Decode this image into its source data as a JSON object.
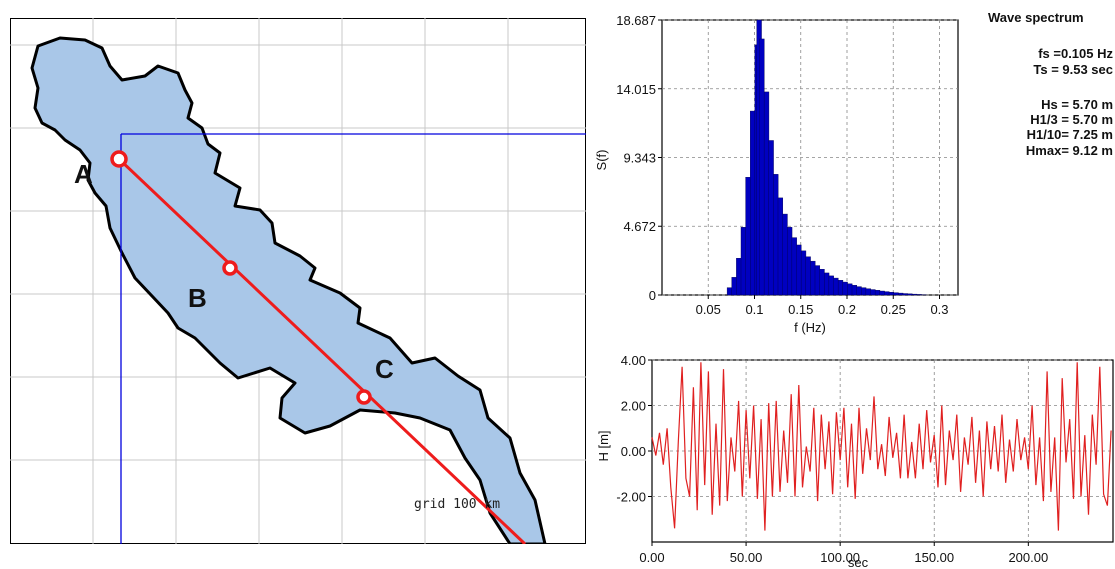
{
  "map": {
    "points": [
      {
        "label": "A"
      },
      {
        "label": "B"
      },
      {
        "label": "C"
      }
    ],
    "grid_label": "grid 100 km",
    "colors": {
      "water": "#a9c7e8",
      "coast": "#000000",
      "line": "#ee1c1c",
      "cross": "#0000dd",
      "grid": "#c8c8c8"
    }
  },
  "spectrum": {
    "title": "Wave spectrum",
    "info_lines": [
      "fs =0.105 Hz",
      "Ts = 9.53 sec",
      "Hs = 5.70 m",
      "H1/3 = 5.70 m",
      "H1/10= 7.25 m",
      "Hmax= 9.12 m"
    ]
  },
  "chart_data": [
    {
      "type": "bar",
      "title": "Wave spectrum",
      "xlabel": "f (Hz)",
      "ylabel": "S(f)",
      "xlim": [
        0,
        0.32
      ],
      "ylim": [
        0,
        18.687
      ],
      "xticks": [
        0.05,
        0.1,
        0.15,
        0.2,
        0.25,
        0.3
      ],
      "xtick_labels": [
        "0.05",
        "0.1",
        "0.15",
        "0.2",
        "0.25",
        "0.3"
      ],
      "yticks": [
        0,
        4.672,
        9.343,
        14.015,
        18.687
      ],
      "ytick_labels": [
        "0",
        "4.672",
        "9.343",
        "14.015",
        "18.687"
      ],
      "grid": true,
      "color": "#0000c0",
      "x": [
        0.068,
        0.073,
        0.078,
        0.083,
        0.088,
        0.093,
        0.098,
        0.103,
        0.105,
        0.108,
        0.113,
        0.118,
        0.123,
        0.128,
        0.133,
        0.138,
        0.143,
        0.148,
        0.153,
        0.158,
        0.163,
        0.168,
        0.173,
        0.178,
        0.183,
        0.188,
        0.193,
        0.198,
        0.203,
        0.208,
        0.213,
        0.218,
        0.223,
        0.228,
        0.233,
        0.238,
        0.243,
        0.248,
        0.253,
        0.258,
        0.263,
        0.268,
        0.273,
        0.278,
        0.283
      ],
      "values": [
        0.0,
        0.5,
        1.2,
        2.5,
        4.6,
        8.0,
        12.5,
        17.0,
        18.687,
        17.4,
        13.8,
        10.5,
        8.2,
        6.6,
        5.5,
        4.6,
        3.9,
        3.4,
        3.0,
        2.6,
        2.3,
        2.0,
        1.75,
        1.5,
        1.3,
        1.15,
        1.0,
        0.88,
        0.76,
        0.66,
        0.57,
        0.5,
        0.43,
        0.37,
        0.32,
        0.27,
        0.23,
        0.19,
        0.16,
        0.13,
        0.1,
        0.08,
        0.06,
        0.04,
        0.02
      ]
    },
    {
      "type": "line",
      "xlabel": "sec",
      "ylabel": "H [m]",
      "xlim": [
        0,
        245
      ],
      "ylim": [
        -4,
        4
      ],
      "xticks": [
        0,
        50,
        100,
        150,
        200
      ],
      "xtick_labels": [
        "0.00",
        "50.00",
        "100.00",
        "150.00",
        "200.00"
      ],
      "yticks": [
        -2,
        0,
        2,
        4
      ],
      "ytick_labels": [
        "-2.00",
        "0.00",
        "2.00",
        "4.00"
      ],
      "grid": true,
      "color": "#e02020",
      "x": [
        0,
        2,
        4,
        6,
        8,
        10,
        12,
        14,
        16,
        18,
        20,
        22,
        24,
        26,
        28,
        30,
        32,
        34,
        36,
        38,
        40,
        42,
        44,
        46,
        48,
        50,
        52,
        54,
        56,
        58,
        60,
        62,
        64,
        66,
        68,
        70,
        72,
        74,
        76,
        78,
        80,
        82,
        84,
        86,
        88,
        90,
        92,
        94,
        96,
        98,
        100,
        102,
        104,
        106,
        108,
        110,
        112,
        114,
        116,
        118,
        120,
        122,
        124,
        126,
        128,
        130,
        132,
        134,
        136,
        138,
        140,
        142,
        144,
        146,
        148,
        150,
        152,
        154,
        156,
        158,
        160,
        162,
        164,
        166,
        168,
        170,
        172,
        174,
        176,
        178,
        180,
        182,
        184,
        186,
        188,
        190,
        192,
        194,
        196,
        198,
        200,
        202,
        204,
        206,
        208,
        210,
        212,
        214,
        216,
        218,
        220,
        222,
        224,
        226,
        228,
        230,
        232,
        234,
        236,
        238,
        240,
        242,
        244
      ],
      "values": [
        0.6,
        -0.2,
        0.8,
        -0.6,
        1.0,
        -1.6,
        -3.4,
        0.4,
        3.7,
        -1.2,
        -2.0,
        2.8,
        -2.6,
        3.9,
        -1.5,
        3.5,
        -2.8,
        1.2,
        -2.4,
        3.6,
        -2.2,
        0.6,
        -0.9,
        2.2,
        -2.0,
        1.8,
        -1.2,
        2.0,
        -2.1,
        1.4,
        -3.5,
        2.1,
        -2.0,
        2.2,
        -1.8,
        0.9,
        -1.4,
        2.5,
        -2.0,
        2.9,
        -1.6,
        0.2,
        -0.9,
        1.9,
        -2.2,
        1.6,
        -0.8,
        1.3,
        -1.9,
        1.7,
        -0.4,
        1.9,
        -1.6,
        1.2,
        -2.1,
        1.9,
        -1.0,
        1.0,
        -0.4,
        2.4,
        -0.8,
        0.3,
        -1.1,
        1.5,
        -0.3,
        0.8,
        -1.2,
        1.6,
        -1.2,
        0.4,
        -1.2,
        1.2,
        -0.8,
        1.8,
        -0.5,
        0.7,
        -1.6,
        2.0,
        -1.5,
        0.9,
        -0.4,
        1.6,
        -1.8,
        0.6,
        -0.6,
        1.5,
        -1.4,
        0.9,
        -2.0,
        1.3,
        -0.8,
        1.1,
        -0.9,
        1.6,
        -1.4,
        0.5,
        -0.9,
        1.4,
        -0.4,
        0.6,
        -0.8,
        2.0,
        -1.5,
        0.6,
        -2.2,
        3.5,
        -1.8,
        0.6,
        -3.5,
        3.2,
        -0.5,
        1.4,
        -2.1,
        3.9,
        -2.0,
        0.7,
        -2.8,
        1.6,
        -0.6,
        3.7,
        -1.9,
        -2.4,
        0.9
      ]
    }
  ]
}
